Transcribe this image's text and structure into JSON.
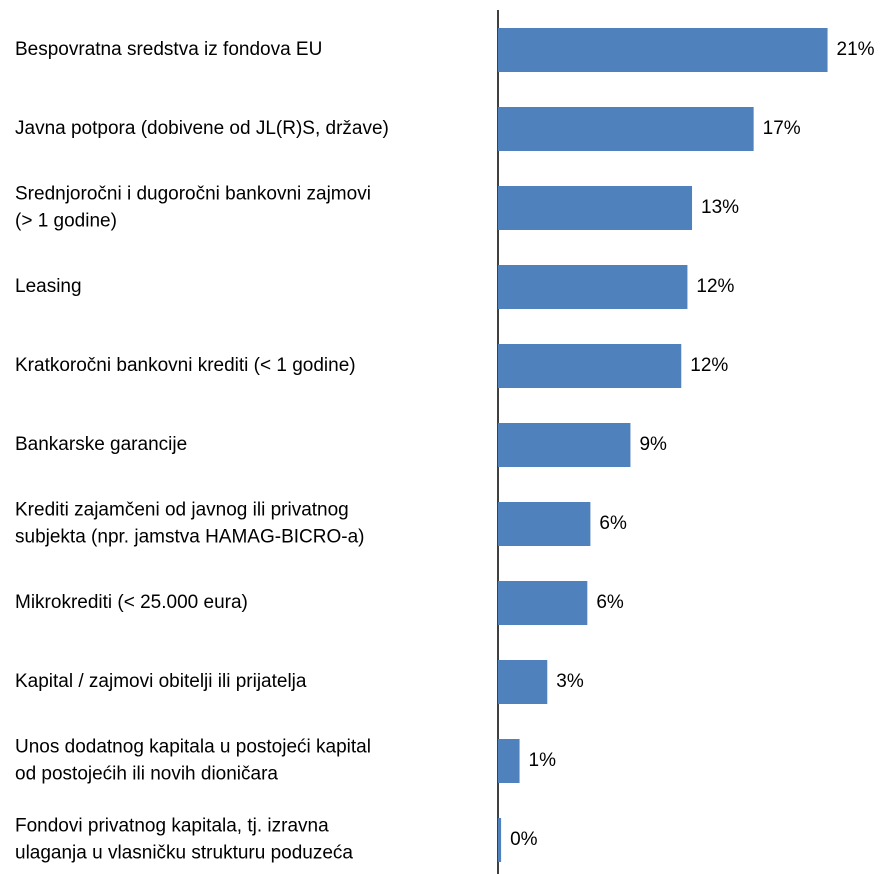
{
  "chart_data": {
    "type": "bar",
    "orientation": "horizontal",
    "categories": [
      [
        "Bespovratna sredstva iz fondova EU"
      ],
      [
        "Javna potpora (dobivene od JL(R)S, države)"
      ],
      [
        "Srednjoročni i dugoročni bankovni zajmovi",
        "(> 1 godine)"
      ],
      [
        "Leasing"
      ],
      [
        "Kratkoročni bankovni krediti (< 1 godine)"
      ],
      [
        "Bankarske garancije"
      ],
      [
        "Krediti zajamčeni od javnog ili privatnog",
        "subjekta (npr. jamstva HAMAG-BICRO-a)"
      ],
      [
        "Mikrokrediti (< 25.000 eura)"
      ],
      [
        "Kapital / zajmovi obitelji ili prijatelja"
      ],
      [
        "Unos dodatnog kapitala u postojeći kapital",
        "od postojećih ili novih dioničara"
      ],
      [
        "Fondovi privatnog kapitala, tj. izravna",
        "ulaganja u vlasničku strukturu poduzeća"
      ]
    ],
    "values": [
      21.4,
      16.6,
      12.6,
      12.3,
      11.9,
      8.6,
      6.0,
      5.8,
      3.2,
      1.4,
      0.2
    ],
    "value_labels": [
      "21%",
      "17%",
      "13%",
      "12%",
      "12%",
      "9%",
      "6%",
      "6%",
      "3%",
      "1%",
      "0%"
    ],
    "color": "#4f81bd",
    "xlim": [
      0,
      25
    ]
  }
}
